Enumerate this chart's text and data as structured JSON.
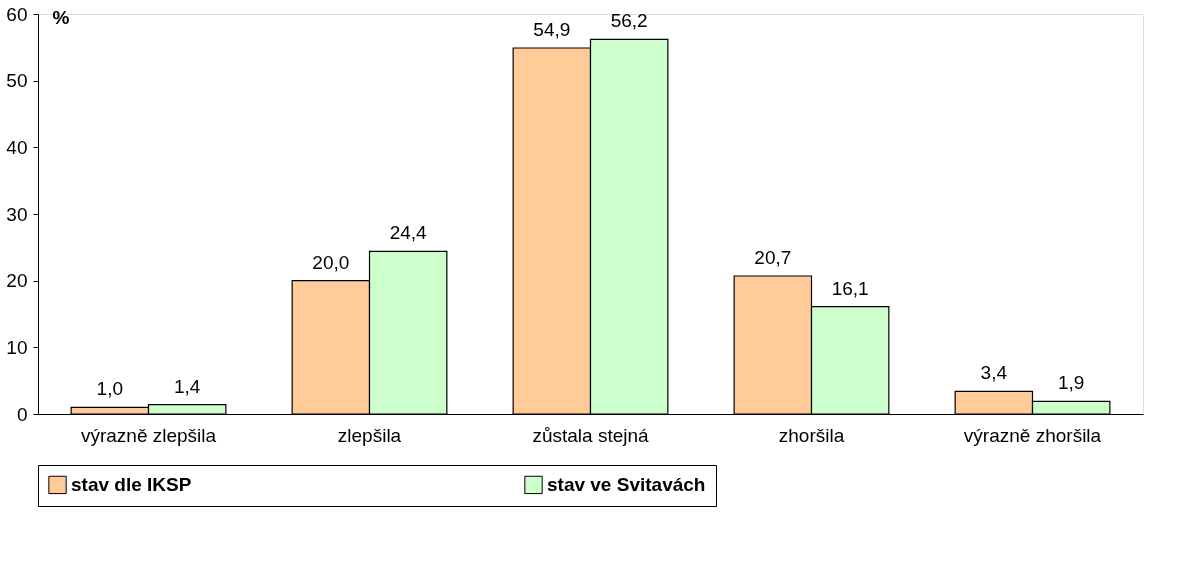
{
  "chart_data": {
    "type": "bar",
    "ylabel": "%",
    "categories": [
      "výrazně zlepšila",
      "zlepšila",
      "zůstala stejná",
      "zhoršila",
      "výrazně zhoršila"
    ],
    "series": [
      {
        "name": "stav dle IKSP",
        "color": "#ffcc99",
        "values": [
          1.0,
          20.0,
          54.9,
          20.7,
          3.4
        ],
        "value_labels": [
          "1,0",
          "20,0",
          "54,9",
          "20,7",
          "3,4"
        ]
      },
      {
        "name": "stav ve Svitavách",
        "color": "#ccffcc",
        "values": [
          1.4,
          24.4,
          56.2,
          16.1,
          1.9
        ],
        "value_labels": [
          "1,4",
          "24,4",
          "56,2",
          "16,1",
          "1,9"
        ]
      }
    ],
    "ylim": [
      0,
      60
    ],
    "yticks": [
      0,
      10,
      20,
      30,
      40,
      50,
      60
    ],
    "grid": false,
    "legend": "bottom"
  }
}
